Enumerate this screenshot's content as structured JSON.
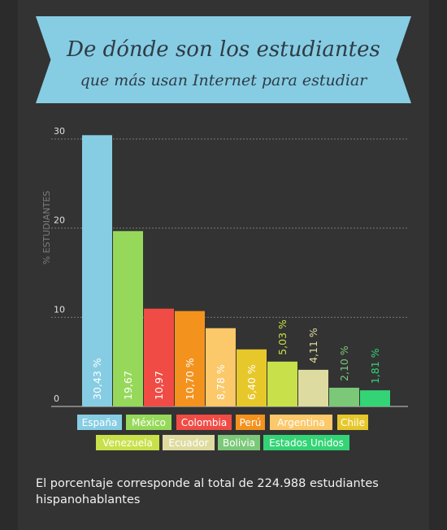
{
  "title": {
    "line1": "De dónde son los estudiantes",
    "line2": "que más usan Internet para estudiar"
  },
  "chart_data": {
    "type": "bar",
    "ylabel": "% ESTUDIANTES",
    "ylim": [
      0,
      30
    ],
    "yticks": [
      "0",
      "10",
      "20",
      "30"
    ],
    "grid": true,
    "legend": "bottom",
    "categories": [
      "España",
      "México",
      "Colombia",
      "Perú",
      "Argentina",
      "Chile",
      "Venezuela",
      "Ecuador",
      "Bolivia",
      "Estados Unidos"
    ],
    "values": [
      30.43,
      19.67,
      10.97,
      10.7,
      8.78,
      6.4,
      5.03,
      4.11,
      2.1,
      1.81
    ],
    "labels": [
      "30,43 %",
      "19,67",
      "10,97",
      "10,70 %",
      "8,78 %",
      "6,40 %",
      "5,03 %",
      "4,11 %",
      "2,10 %",
      "1,81 %"
    ],
    "colors": [
      "#86cde4",
      "#96d95a",
      "#f04c45",
      "#f4921e",
      "#fbc86a",
      "#e7c82a",
      "#c8e04a",
      "#dedba0",
      "#7bc879",
      "#34d476"
    ]
  },
  "footnote": "El porcentaje corresponde al total de 224.988 estudiantes hispanohablantes"
}
